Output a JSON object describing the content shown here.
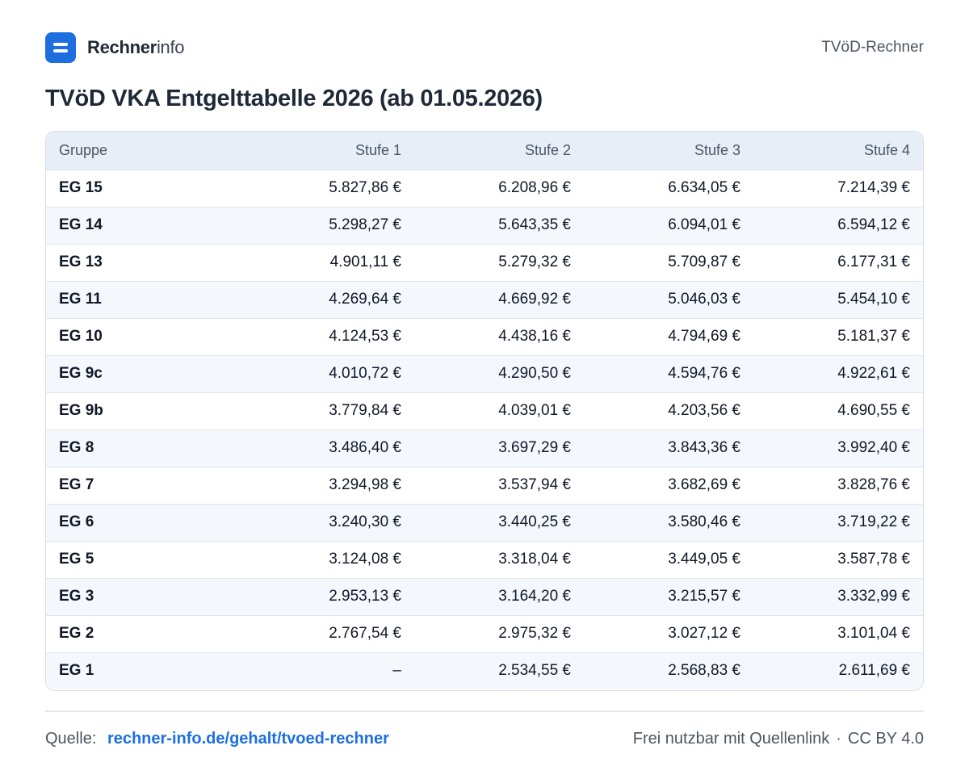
{
  "brand": {
    "name_bold": "Rechner",
    "name_light": "info"
  },
  "header": {
    "right_label": "TVöD-Rechner"
  },
  "title": "TVöD VKA Entgelttabelle 2026 (ab 01.05.2026)",
  "table": {
    "headers": [
      "Gruppe",
      "Stufe 1",
      "Stufe 2",
      "Stufe 3",
      "Stufe 4"
    ],
    "rows": [
      [
        "EG 15",
        "5.827,86 €",
        "6.208,96 €",
        "6.634,05 €",
        "7.214,39 €"
      ],
      [
        "EG 14",
        "5.298,27 €",
        "5.643,35 €",
        "6.094,01 €",
        "6.594,12 €"
      ],
      [
        "EG 13",
        "4.901,11 €",
        "5.279,32 €",
        "5.709,87 €",
        "6.177,31 €"
      ],
      [
        "EG 11",
        "4.269,64 €",
        "4.669,92 €",
        "5.046,03 €",
        "5.454,10 €"
      ],
      [
        "EG 10",
        "4.124,53 €",
        "4.438,16 €",
        "4.794,69 €",
        "5.181,37 €"
      ],
      [
        "EG 9c",
        "4.010,72 €",
        "4.290,50 €",
        "4.594,76 €",
        "4.922,61 €"
      ],
      [
        "EG 9b",
        "3.779,84 €",
        "4.039,01 €",
        "4.203,56 €",
        "4.690,55 €"
      ],
      [
        "EG 8",
        "3.486,40 €",
        "3.697,29 €",
        "3.843,36 €",
        "3.992,40 €"
      ],
      [
        "EG 7",
        "3.294,98 €",
        "3.537,94 €",
        "3.682,69 €",
        "3.828,76 €"
      ],
      [
        "EG 6",
        "3.240,30 €",
        "3.440,25 €",
        "3.580,46 €",
        "3.719,22 €"
      ],
      [
        "EG 5",
        "3.124,08 €",
        "3.318,04 €",
        "3.449,05 €",
        "3.587,78 €"
      ],
      [
        "EG 3",
        "2.953,13 €",
        "3.164,20 €",
        "3.215,57 €",
        "3.332,99 €"
      ],
      [
        "EG 2",
        "2.767,54 €",
        "2.975,32 €",
        "3.027,12 €",
        "3.101,04 €"
      ],
      [
        "EG 1",
        "–",
        "2.534,55 €",
        "2.568,83 €",
        "2.611,69 €"
      ]
    ]
  },
  "footer": {
    "source_label": "Quelle:",
    "source_link": "rechner-info.de/gehalt/tvoed-rechner",
    "license_text": "Frei nutzbar mit Quellenlink",
    "separator": "·",
    "license": "CC BY 4.0"
  },
  "colors": {
    "accent": "#1d6fe0",
    "header_bg": "#e7eef8",
    "zebra_bg": "#f4f7fc"
  },
  "icons": {
    "logo": "rechnerinfo-logo-icon"
  }
}
